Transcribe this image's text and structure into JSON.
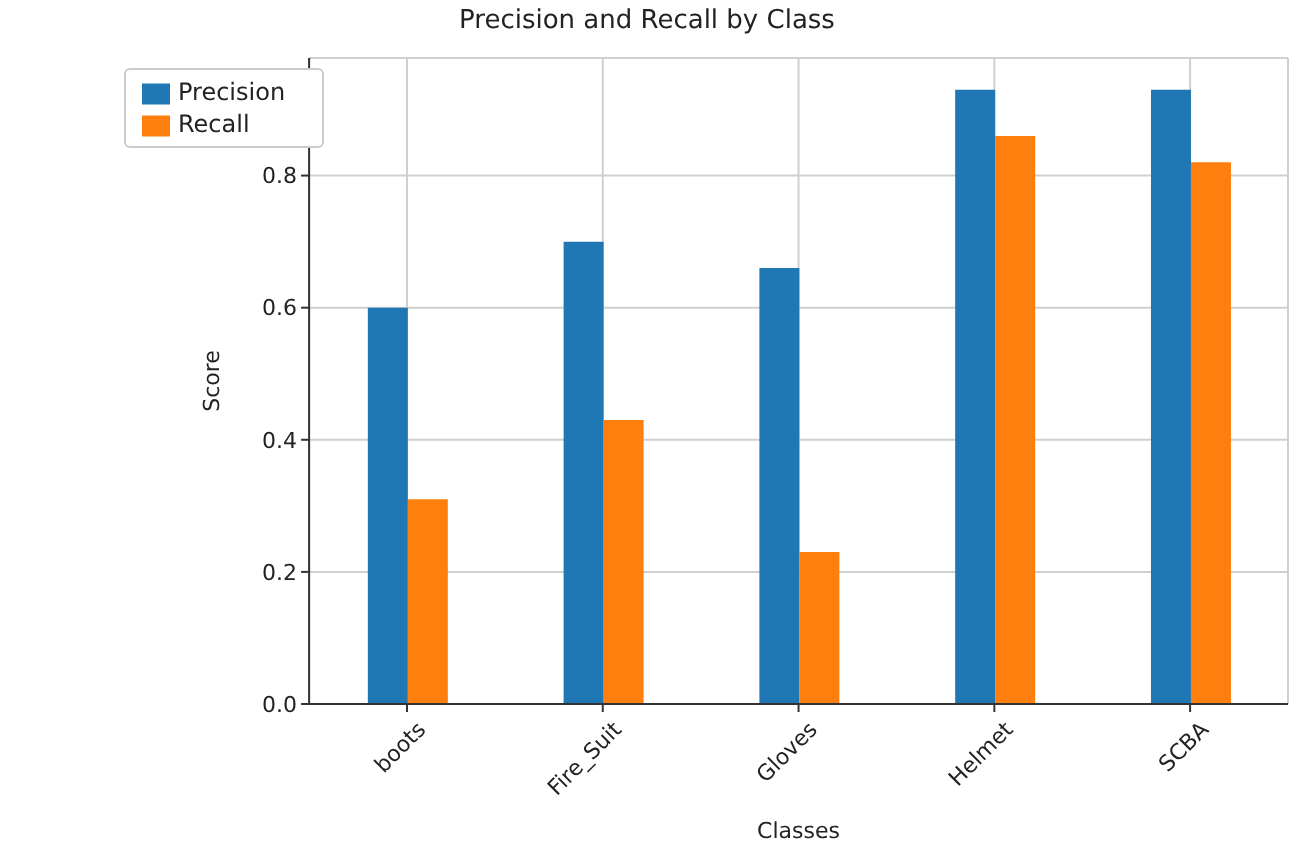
{
  "chart_data": {
    "type": "bar",
    "title": "Precision and Recall by Class",
    "xlabel": "Classes",
    "ylabel": "Score",
    "categories": [
      "boots",
      "Fire_Suit",
      "Gloves",
      "Helmet",
      "SCBA"
    ],
    "series": [
      {
        "name": "Precision",
        "color": "#1f77b4",
        "values": [
          0.6,
          0.7,
          0.66,
          0.93,
          0.93
        ]
      },
      {
        "name": "Recall",
        "color": "#ff7f0e",
        "values": [
          0.31,
          0.43,
          0.23,
          0.86,
          0.82
        ]
      }
    ],
    "ylim": [
      0,
      0.978
    ],
    "yticks": [
      {
        "value": 0,
        "label": "0.0"
      },
      0.2,
      0.4,
      0.6,
      0.8
    ],
    "grid": true,
    "legend": "top left"
  }
}
